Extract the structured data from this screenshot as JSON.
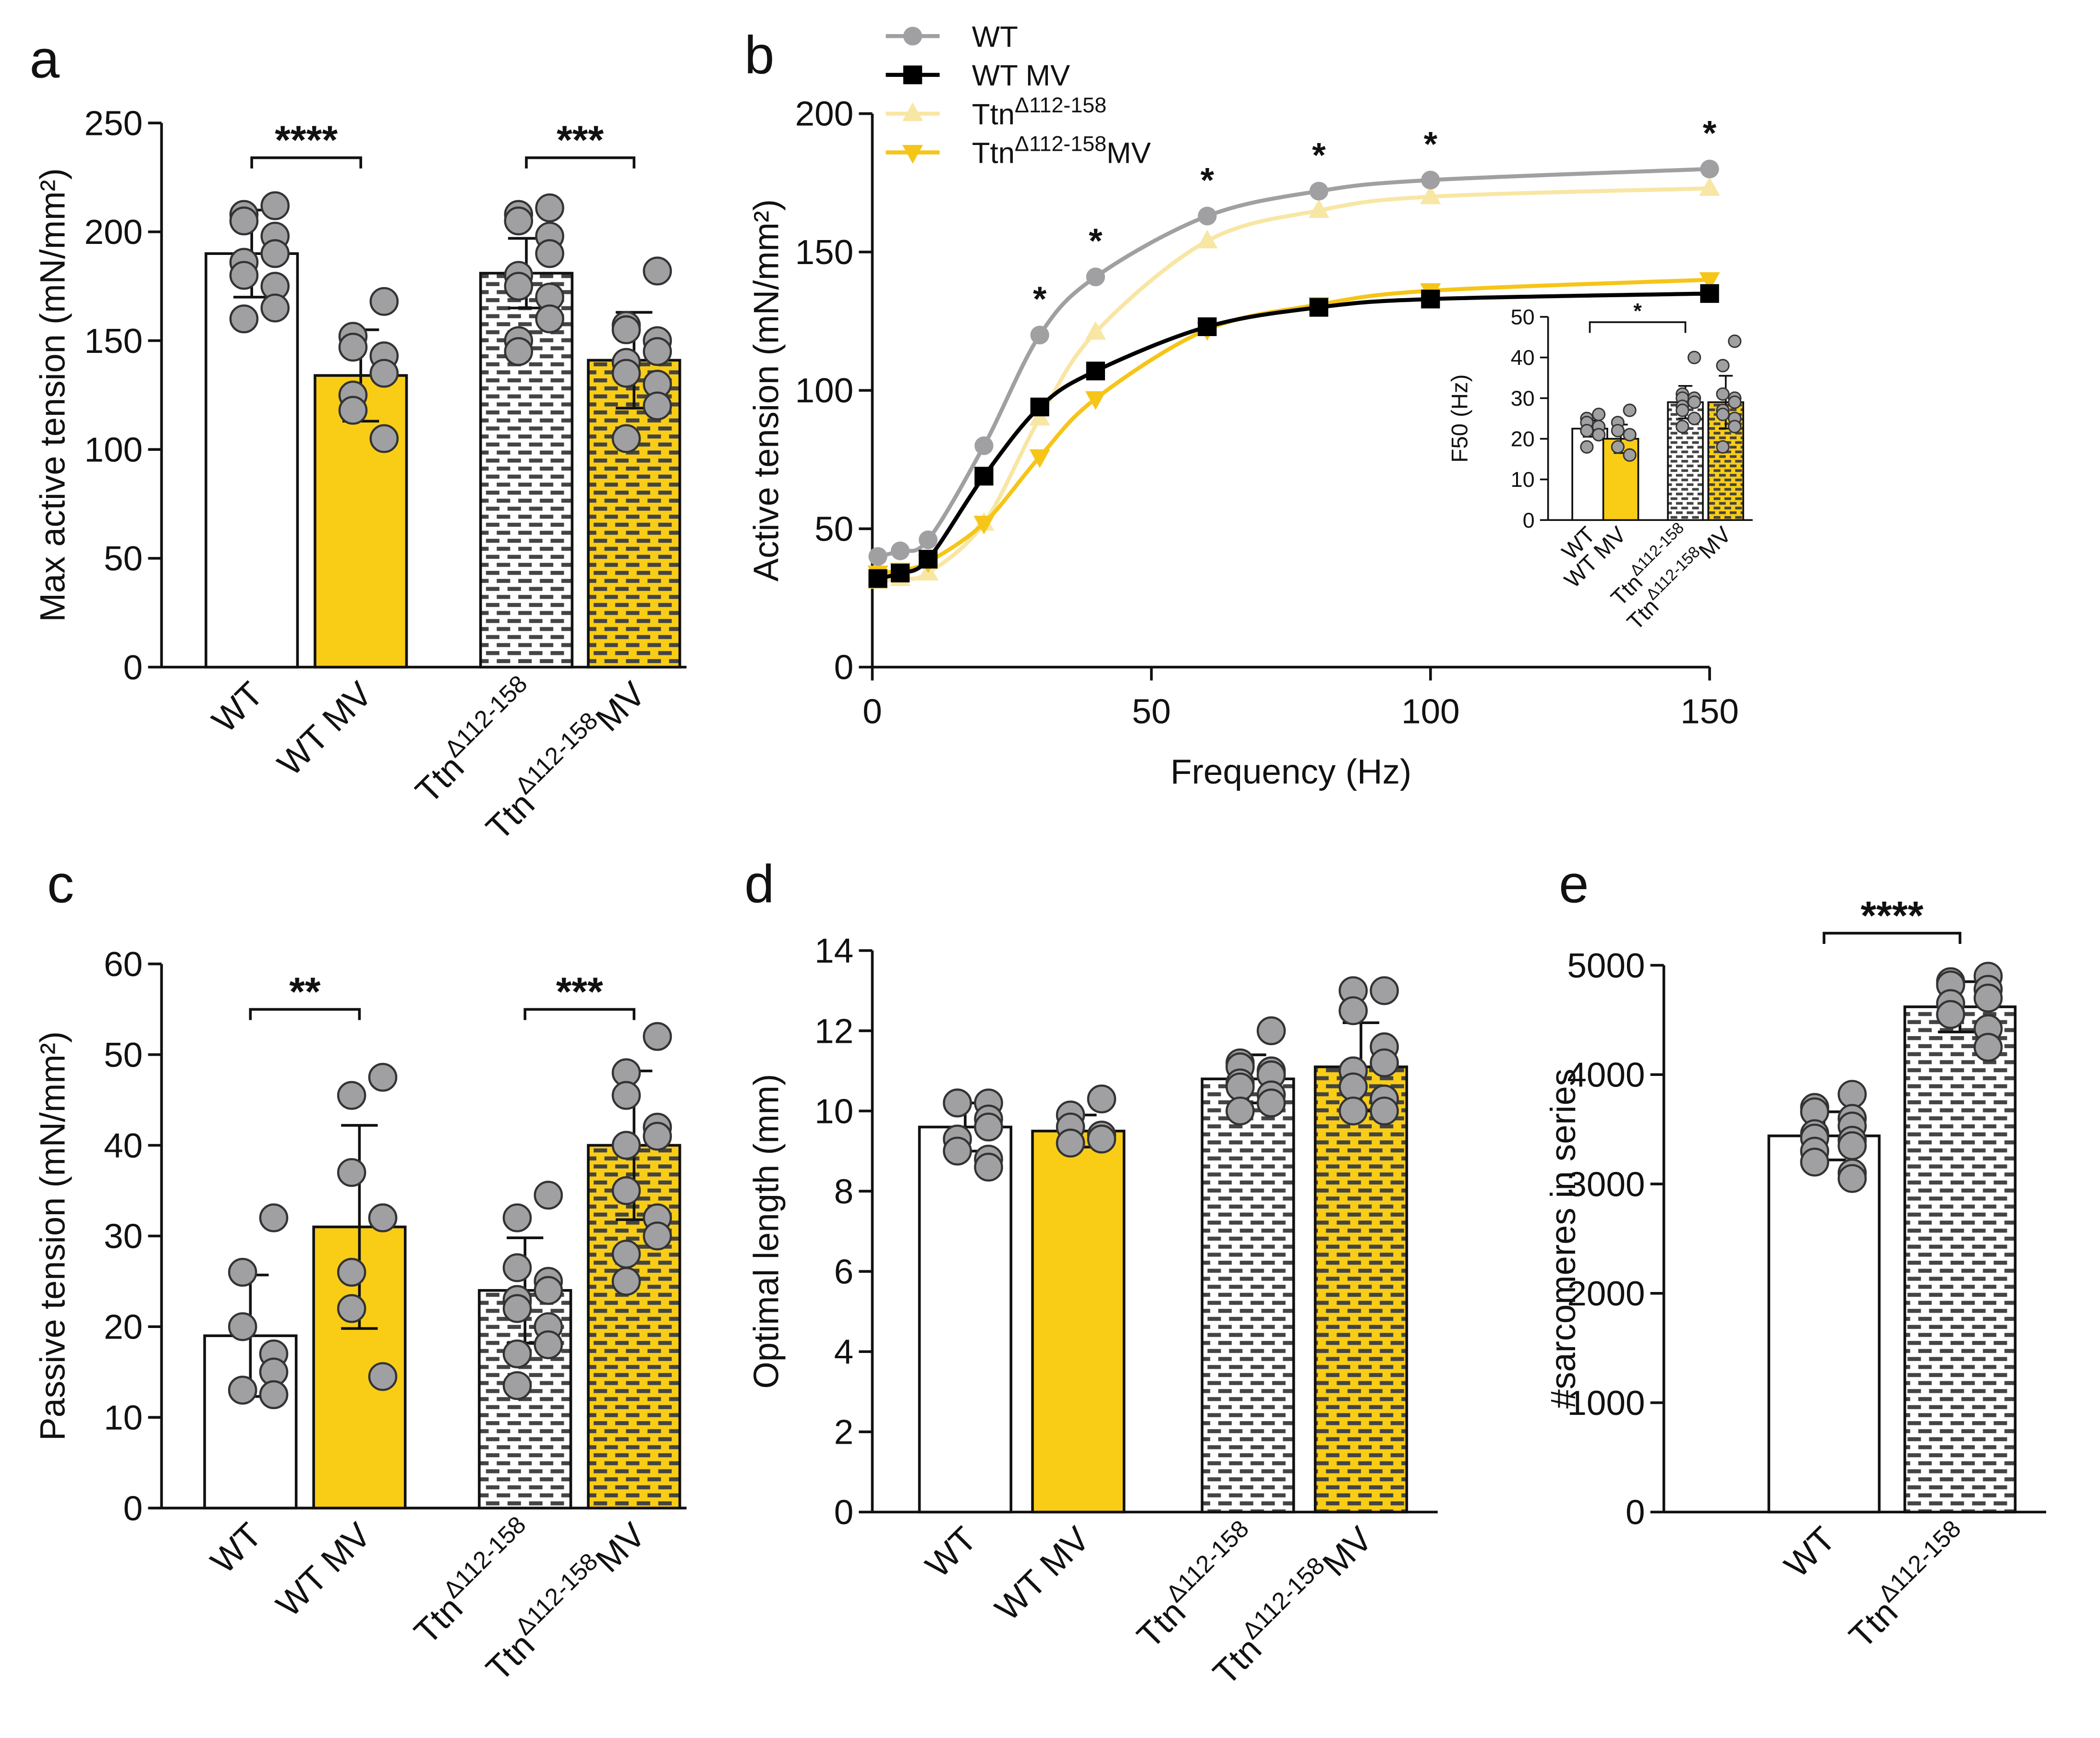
{
  "colors": {
    "wt": "#ffffff",
    "mv": "#f9cd16",
    "point": "#a0a0a2",
    "wt_line": "#a0a0a2",
    "wtmv_line": "#000000",
    "ttn_line": "#f8e6a4",
    "ttnmv_line": "#f5c518"
  },
  "group_labels": [
    {
      "base": "WT",
      "sup": "",
      "suffix": ""
    },
    {
      "base": "WT MV",
      "sup": "",
      "suffix": ""
    },
    {
      "base": "Ttn",
      "sup": "Δ112-158",
      "suffix": ""
    },
    {
      "base": "Ttn",
      "sup": "Δ112-158",
      "suffix": "MV"
    }
  ],
  "chart_data": [
    {
      "panel": "a",
      "type": "bar",
      "ylabel": "Max active tension (mN/mm²)",
      "ylim": [
        0,
        250
      ],
      "yticks": [
        0,
        50,
        100,
        150,
        200,
        250
      ],
      "groups": [
        "WT",
        "WT MV",
        "TtnΔ112-158",
        "TtnΔ112-158 MV"
      ],
      "means": [
        190,
        134,
        181,
        141
      ],
      "sd": [
        20,
        21,
        16,
        22
      ],
      "points": [
        [
          212,
          208,
          205,
          198,
          190,
          186,
          180,
          175,
          165,
          160
        ],
        [
          168,
          152,
          147,
          143,
          135,
          125,
          118,
          105
        ],
        [
          211,
          208,
          205,
          198,
          190,
          180,
          175,
          170,
          160,
          150,
          145
        ],
        [
          182,
          157,
          155,
          150,
          145,
          140,
          135,
          130,
          120,
          105
        ]
      ],
      "significance": [
        {
          "pair": [
            0,
            1
          ],
          "label": "****"
        },
        {
          "pair": [
            2,
            3
          ],
          "label": "***"
        }
      ]
    },
    {
      "panel": "b",
      "type": "line",
      "xlabel": "Frequency (Hz)",
      "ylabel": "Active tension (mN/mm²)",
      "xlim": [
        0,
        150
      ],
      "ylim": [
        0,
        200
      ],
      "xticks": [
        0,
        50,
        100,
        150
      ],
      "yticks": [
        0,
        50,
        100,
        150,
        200
      ],
      "x": [
        1,
        5,
        10,
        20,
        30,
        40,
        60,
        80,
        100,
        150
      ],
      "series": [
        {
          "name": "WT",
          "sup": "",
          "suffix": "",
          "marker": "circle",
          "values": [
            40,
            42,
            46,
            80,
            120,
            141,
            163,
            172,
            176,
            180
          ]
        },
        {
          "name": "WT MV",
          "sup": "",
          "suffix": "",
          "marker": "square",
          "values": [
            32,
            34,
            39,
            69,
            94,
            107,
            123,
            130,
            133,
            135
          ]
        },
        {
          "name": "Ttn",
          "sup": "Δ112-158",
          "suffix": "",
          "marker": "triangle-up",
          "values": [
            31,
            32,
            34,
            52,
            90,
            121,
            154,
            165,
            170,
            173
          ]
        },
        {
          "name": "Ttn",
          "sup": "Δ112-158",
          "suffix": "MV",
          "marker": "triangle-down",
          "values": [
            34,
            35,
            38,
            52,
            76,
            97,
            122,
            131,
            136,
            140
          ]
        }
      ],
      "significance_x": [
        30,
        40,
        60,
        80,
        100,
        150
      ],
      "significance_label": "*",
      "legend": "top-left"
    },
    {
      "panel": "b-inset",
      "type": "bar",
      "ylabel": "F50 (Hz)",
      "ylim": [
        0,
        50
      ],
      "yticks": [
        0,
        10,
        20,
        30,
        40,
        50
      ],
      "groups": [
        "WT",
        "WT MV",
        "TtnΔ112-158",
        "TtnΔ112-158 MV"
      ],
      "means": [
        22.5,
        20,
        29,
        29
      ],
      "sd": [
        2,
        3.5,
        4,
        6.5
      ],
      "points": [
        [
          26,
          25,
          24,
          23,
          23,
          22,
          22,
          21,
          21,
          18
        ],
        [
          27,
          24,
          22,
          21,
          21,
          18,
          18,
          16,
          16
        ],
        [
          40,
          31,
          30,
          30,
          29,
          28,
          27,
          25,
          25,
          23
        ],
        [
          44,
          38,
          31,
          30,
          29,
          27,
          26,
          25,
          23,
          18
        ]
      ],
      "significance": [
        {
          "pair": [
            0,
            2
          ],
          "label": "*"
        }
      ]
    },
    {
      "panel": "c",
      "type": "bar",
      "ylabel": "Passive tension (mN/mm²)",
      "ylim": [
        0,
        60
      ],
      "yticks": [
        0,
        10,
        20,
        30,
        40,
        50,
        60
      ],
      "groups": [
        "WT",
        "WT MV",
        "TtnΔ112-158",
        "TtnΔ112-158 MV"
      ],
      "means": [
        19,
        31,
        24,
        40
      ],
      "sd": [
        6.7,
        11.2,
        5.8,
        8.2
      ],
      "points": [
        [
          32,
          26,
          20,
          17,
          15,
          13,
          13,
          12.5,
          12.5
        ],
        [
          47.5,
          45.5,
          37,
          32,
          32,
          26,
          22,
          14.5
        ],
        [
          34.5,
          32,
          26.5,
          25,
          24,
          23,
          22,
          20,
          18,
          17,
          13.5
        ],
        [
          52,
          48,
          45.5,
          42,
          41,
          40,
          35,
          32,
          30,
          28,
          25
        ]
      ],
      "significance": [
        {
          "pair": [
            0,
            1
          ],
          "label": "**"
        },
        {
          "pair": [
            2,
            3
          ],
          "label": "***"
        }
      ]
    },
    {
      "panel": "d",
      "type": "bar",
      "ylabel": "Optimal length  (mm)",
      "ylim": [
        0,
        14
      ],
      "yticks": [
        0,
        2,
        4,
        6,
        8,
        10,
        12,
        14
      ],
      "groups": [
        "WT",
        "WT MV",
        "TtnΔ112-158",
        "TtnΔ112-158 MV"
      ],
      "means": [
        9.6,
        9.5,
        10.8,
        11.1
      ],
      "sd": [
        0.6,
        0.4,
        0.6,
        1.1
      ],
      "points": [
        [
          10.2,
          10.2,
          10.2,
          9.8,
          9.6,
          9.3,
          9.0,
          8.8,
          8.6
        ],
        [
          10.3,
          9.9,
          9.6,
          9.4,
          9.3,
          9.2,
          9.2
        ],
        [
          12.0,
          11.2,
          11.1,
          11.0,
          10.9,
          10.7,
          10.6,
          10.4,
          10.2,
          10.0
        ],
        [
          13.0,
          13.0,
          12.5,
          11.6,
          11.2,
          11.0,
          10.6,
          10.3,
          10.0,
          10.0
        ]
      ],
      "significance": []
    },
    {
      "panel": "e",
      "type": "bar",
      "ylabel": "#sarcomeres in series",
      "ylim": [
        0,
        5000
      ],
      "yticks": [
        0,
        1000,
        2000,
        3000,
        4000,
        5000
      ],
      "groups": [
        "WT",
        "TtnΔ112-158"
      ],
      "means": [
        3440,
        4620
      ],
      "sd": [
        220,
        230
      ],
      "points": [
        [
          3820,
          3700,
          3660,
          3600,
          3530,
          3460,
          3420,
          3400,
          3350,
          3300,
          3200,
          3100,
          3050
        ],
        [
          4900,
          4850,
          4820,
          4780,
          4700,
          4650,
          4550,
          4420,
          4250
        ]
      ],
      "significance": [
        {
          "pair": [
            0,
            1
          ],
          "label": "****"
        }
      ]
    }
  ]
}
